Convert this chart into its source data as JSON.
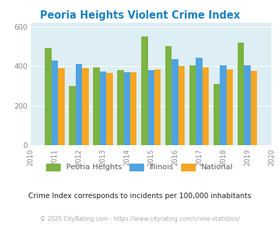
{
  "title": "Peoria Heights Violent Crime Index",
  "subtitle": "Crime Index corresponds to incidents per 100,000 inhabitants",
  "footer": "© 2025 CityRating.com - https://www.cityrating.com/crime-statistics/",
  "years": [
    2011,
    2012,
    2013,
    2014,
    2015,
    2016,
    2017,
    2018,
    2019
  ],
  "peoria_heights": [
    490,
    300,
    395,
    380,
    550,
    500,
    405,
    310,
    520
  ],
  "illinois": [
    428,
    410,
    373,
    368,
    380,
    435,
    442,
    405,
    405
  ],
  "national": [
    390,
    390,
    365,
    370,
    383,
    400,
    395,
    383,
    378
  ],
  "xlim": [
    2010,
    2020
  ],
  "ylim": [
    0,
    620
  ],
  "yticks": [
    0,
    200,
    400,
    600
  ],
  "color_peoria": "#7cb342",
  "color_illinois": "#4fa3e0",
  "color_national": "#f5a623",
  "bg_color": "#ddeef4",
  "title_color": "#1a80c4",
  "subtitle_color": "#222222",
  "footer_color": "#aaaaaa",
  "bar_width": 0.27,
  "legend_labels": [
    "Peoria Heights",
    "Illinois",
    "National"
  ]
}
